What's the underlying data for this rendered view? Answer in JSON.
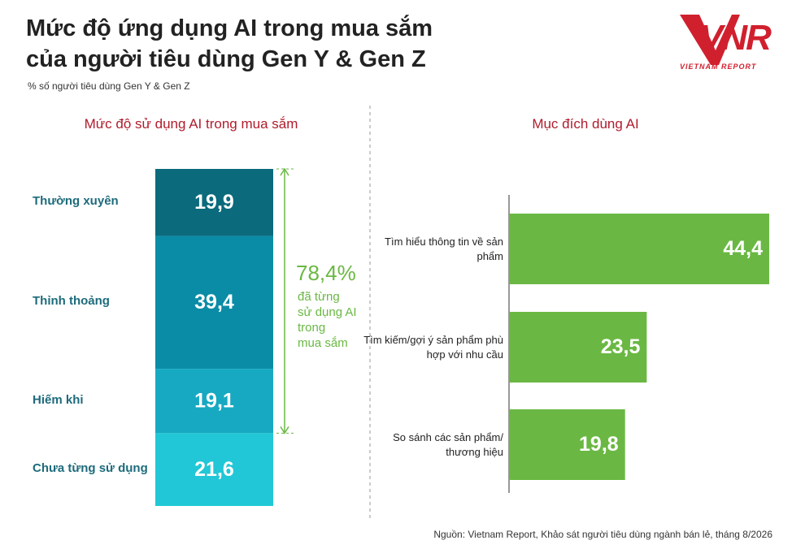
{
  "title": [
    "Mức độ ứng dụng AI trong mua sắm",
    "của người tiêu dùng Gen Y & Gen Z"
  ],
  "subtitle": "% số người tiêu dùng Gen Y & Gen Z",
  "logo": {
    "name": "VNR",
    "tagline": "VIETNAM REPORT"
  },
  "source": "Nguồn: Vietnam Report, Khảo sát người tiêu dùng ngành bán lẻ, tháng 8/2026",
  "chart_data": [
    {
      "type": "stacked_bar",
      "title": "Mức độ sử dụng AI trong mua sắm",
      "categories": [
        "Thường xuyên",
        "Thỉnh thoảng",
        "Hiếm khi",
        "Chưa từng sử dụng"
      ],
      "values": [
        19.9,
        39.4,
        19.1,
        21.6
      ],
      "value_labels": [
        "19,9",
        "39,4",
        "19,1",
        "21,6"
      ],
      "colors": [
        "#0b6a7c",
        "#0b8ca6",
        "#17a9c2",
        "#21c7d6"
      ],
      "ylim": [
        0,
        100
      ],
      "annotation": {
        "label": "78,4%",
        "text": [
          "đã từng",
          "sử dụng AI",
          "trong",
          "mua sắm"
        ],
        "color": "#6ab843"
      }
    },
    {
      "type": "bar",
      "orientation": "horizontal",
      "title": "Mục đích dùng AI",
      "categories": [
        "Tìm hiểu thông tin về sản phẩm",
        "Tìm kiếm/gợi ý sản phẩm phù hợp với nhu cầu",
        "So sánh các sản phẩm/ thương hiệu"
      ],
      "values": [
        44.4,
        23.5,
        19.8
      ],
      "value_labels": [
        "44,4",
        "23,5",
        "19,8"
      ],
      "color": "#6ab843"
    }
  ]
}
